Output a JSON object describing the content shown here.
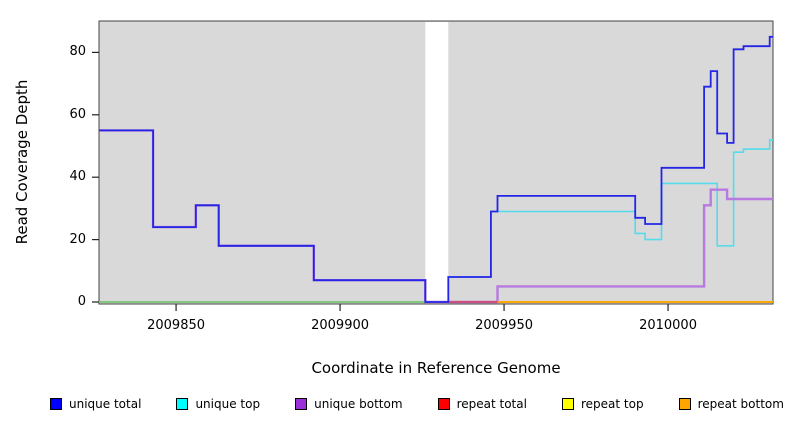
{
  "chart_data": {
    "type": "line",
    "subtype": "step-after",
    "title": "",
    "xlabel": "Coordinate in Reference Genome",
    "ylabel": "Read Coverage Depth",
    "x_range": [
      2009826.5,
      2010032
    ],
    "y_range": [
      0,
      89
    ],
    "x_ticks": [
      2009850,
      2009900,
      2009950,
      2010000
    ],
    "y_ticks": [
      0,
      20,
      40,
      60,
      80
    ],
    "grid": "off",
    "legend_position": "bottom",
    "plot_bg": "#d9d9d9",
    "gap_region": {
      "x_start": 2009926,
      "x_end": 2009933,
      "color": "#ffffff"
    },
    "series": [
      {
        "name": "repeat total",
        "color": "#e03030",
        "legend_color": "#ff0000",
        "width": 1.5,
        "z": 1,
        "steps": [
          [
            2009826.5,
            0
          ]
        ]
      },
      {
        "name": "repeat top",
        "color": "#f5e630",
        "legend_color": "#ffff00",
        "width": 1.5,
        "z": 2,
        "steps": [
          [
            2009826.5,
            0
          ]
        ]
      },
      {
        "name": "repeat bottom",
        "color": "#ffa500",
        "legend_color": "#ffa500",
        "width": 1.5,
        "z": 3,
        "steps": [
          [
            2009826.5,
            0
          ]
        ]
      },
      {
        "name": "unique top",
        "color": "#55dcec",
        "legend_color": "#00ffff",
        "width": 1.6,
        "z": 4,
        "steps": [
          [
            2009826.5,
            0
          ],
          [
            2009933,
            8
          ],
          [
            2009946,
            29
          ],
          [
            2009990,
            22
          ],
          [
            2009993,
            20
          ],
          [
            2009998,
            38
          ],
          [
            2010015,
            18
          ],
          [
            2010020,
            48
          ],
          [
            2010023,
            49
          ],
          [
            2010031,
            52
          ]
        ]
      },
      {
        "name": "unique bottom",
        "color": "#b87ae0",
        "legend_color": "#9b30d9",
        "width": 2.4,
        "z": 5,
        "steps": [
          [
            2009826.5,
            55
          ],
          [
            2009843,
            24
          ],
          [
            2009856,
            31
          ],
          [
            2009863,
            18
          ],
          [
            2009892,
            7
          ],
          [
            2009926,
            0
          ],
          [
            2009948,
            5
          ],
          [
            2010011,
            31
          ],
          [
            2010013,
            36
          ],
          [
            2010018,
            33
          ]
        ]
      },
      {
        "name": "unique total",
        "color": "#2525e6",
        "legend_color": "#0000ff",
        "width": 1.8,
        "z": 7,
        "steps": [
          [
            2009826.5,
            55
          ],
          [
            2009843,
            24
          ],
          [
            2009856,
            31
          ],
          [
            2009863,
            18
          ],
          [
            2009892,
            7
          ],
          [
            2009926,
            0
          ],
          [
            2009933,
            8
          ],
          [
            2009946,
            29
          ],
          [
            2009948,
            34
          ],
          [
            2009990,
            27
          ],
          [
            2009993,
            25
          ],
          [
            2009998,
            43
          ],
          [
            2010011,
            69
          ],
          [
            2010013,
            74
          ],
          [
            2010015,
            54
          ],
          [
            2010018,
            51
          ],
          [
            2010020,
            81
          ],
          [
            2010023,
            82
          ],
          [
            2010031,
            85
          ]
        ]
      }
    ],
    "baseline_overdraw": [
      {
        "x_start": 2009826.5,
        "x_end": 2009926,
        "color": "#7cc87c"
      },
      {
        "x_start": 2009933,
        "x_end": 2009948,
        "color": "#d6496b"
      },
      {
        "x_start": 2009948,
        "x_end": 2010032,
        "color": "#ffa500"
      }
    ]
  },
  "legend": {
    "items": [
      {
        "label": "unique total",
        "color": "#0000ff"
      },
      {
        "label": "unique top",
        "color": "#00ffff"
      },
      {
        "label": "unique bottom",
        "color": "#9b30d9"
      },
      {
        "label": "repeat total",
        "color": "#ff0000"
      },
      {
        "label": "repeat top",
        "color": "#ffff00"
      },
      {
        "label": "repeat bottom",
        "color": "#ffa500"
      }
    ]
  }
}
